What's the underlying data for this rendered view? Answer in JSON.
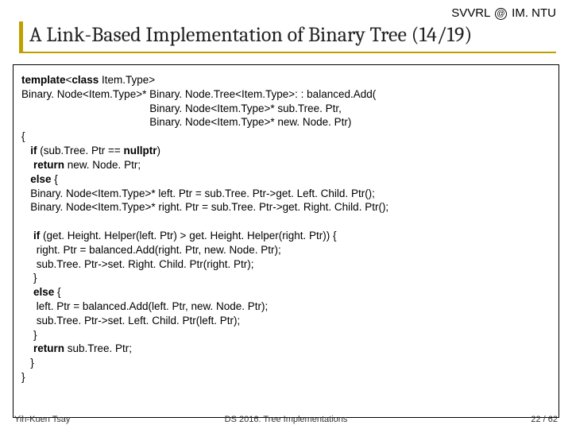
{
  "header": {
    "svvrl": "SVVRL",
    "at": "@",
    "ntu": "IM. NTU",
    "title": "A Link-Based Implementation of Binary Tree (14/19)"
  },
  "code": {
    "l01a": "template",
    "l01b": "<",
    "l01c": "class",
    "l01d": " Item.Type>",
    "l02": "Binary. Node<Item.Type>* Binary. Node.Tree<Item.Type>: : balanced.Add(",
    "l03": "                                           Binary. Node<Item.Type>* sub.Tree. Ptr,",
    "l04": "                                           Binary. Node<Item.Type>* new. Node. Ptr)",
    "l05": "{",
    "l06a": "   if",
    "l06b": " (sub.Tree. Ptr == ",
    "l06c": "nullptr",
    "l06d": ")",
    "l07a": "    return",
    "l07b": " new. Node. Ptr;",
    "l08a": "   else",
    "l08b": " {",
    "l09": "   Binary. Node<Item.Type>* left. Ptr = sub.Tree. Ptr->get. Left. Child. Ptr();",
    "l10": "   Binary. Node<Item.Type>* right. Ptr = sub.Tree. Ptr->get. Right. Child. Ptr();",
    "blank1": " ",
    "l11a": "    if",
    "l11b": " (get. Height. Helper(left. Ptr) > get. Height. Helper(right. Ptr)) {",
    "l12": "     right. Ptr = balanced.Add(right. Ptr, new. Node. Ptr);",
    "l13": "     sub.Tree. Ptr->set. Right. Child. Ptr(right. Ptr);",
    "l14": "    }",
    "l15a": "    else",
    "l15b": " {",
    "l16": "     left. Ptr = balanced.Add(left. Ptr, new. Node. Ptr);",
    "l17": "     sub.Tree. Ptr->set. Left. Child. Ptr(left. Ptr);",
    "l18": "    }",
    "l19a": "    return",
    "l19b": " sub.Tree. Ptr;",
    "l20": "   }",
    "l21": "}"
  },
  "footer": {
    "left": "Yih-Kuen Tsay",
    "center": "DS 2016: Tree Implementations",
    "right": "22 / 62"
  },
  "colors": {
    "accent": "#c0a000",
    "text": "#000000",
    "background": "#ffffff"
  }
}
